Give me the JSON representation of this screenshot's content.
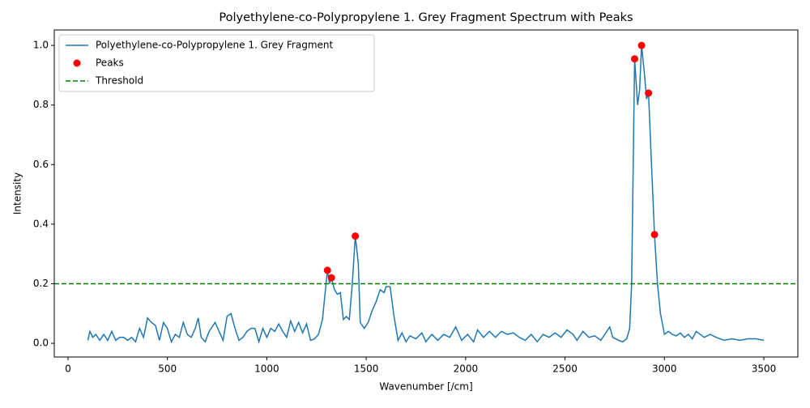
{
  "chart_data": {
    "type": "line",
    "title": "Polyethylene-co-Polypropylene 1. Grey Fragment Spectrum with Peaks",
    "x_label": "Wavenumber [/cm]",
    "y_label": "Intensity",
    "xlim": [
      -69,
      3671
    ],
    "ylim": [
      -0.046,
      1.052
    ],
    "xticks": [
      0,
      500,
      1000,
      1500,
      2000,
      2500,
      3000,
      3500
    ],
    "yticks": [
      {
        "value": 0,
        "label": "0.0"
      },
      0.2,
      0.4,
      0.6,
      0.8,
      {
        "value": 1,
        "label": "1.0"
      }
    ],
    "legend": "upper left",
    "series": [
      {
        "name": "Polyethylene-co-Polypropylene 1. Grey Fragment",
        "type": "line",
        "color": "#1f77b4",
        "x": [
          100,
          110,
          125,
          140,
          160,
          180,
          200,
          220,
          240,
          260,
          280,
          300,
          320,
          340,
          360,
          380,
          400,
          420,
          440,
          460,
          480,
          500,
          520,
          540,
          560,
          580,
          600,
          620,
          640,
          655,
          670,
          690,
          710,
          740,
          760,
          780,
          800,
          820,
          840,
          860,
          880,
          900,
          920,
          940,
          960,
          980,
          1000,
          1020,
          1040,
          1060,
          1080,
          1100,
          1120,
          1140,
          1160,
          1180,
          1200,
          1220,
          1240,
          1260,
          1280,
          1295,
          1305,
          1315,
          1325,
          1340,
          1355,
          1370,
          1385,
          1400,
          1415,
          1430,
          1445,
          1460,
          1470,
          1490,
          1510,
          1530,
          1550,
          1570,
          1590,
          1600,
          1620,
          1640,
          1660,
          1680,
          1700,
          1720,
          1750,
          1780,
          1800,
          1830,
          1860,
          1890,
          1920,
          1950,
          1980,
          2010,
          2040,
          2060,
          2090,
          2120,
          2150,
          2180,
          2210,
          2240,
          2270,
          2300,
          2330,
          2360,
          2390,
          2420,
          2450,
          2480,
          2510,
          2540,
          2560,
          2590,
          2620,
          2650,
          2680,
          2710,
          2725,
          2740,
          2770,
          2790,
          2810,
          2825,
          2835,
          2850,
          2865,
          2875,
          2885,
          2900,
          2910,
          2920,
          2935,
          2950,
          2965,
          2980,
          3000,
          3020,
          3040,
          3060,
          3080,
          3100,
          3120,
          3140,
          3160,
          3180,
          3200,
          3230,
          3260,
          3300,
          3340,
          3380,
          3420,
          3460,
          3500
        ],
        "values": [
          0.01,
          0.04,
          0.02,
          0.03,
          0.01,
          0.03,
          0.01,
          0.04,
          0.01,
          0.02,
          0.02,
          0.01,
          0.02,
          0.005,
          0.05,
          0.02,
          0.085,
          0.07,
          0.06,
          0.01,
          0.07,
          0.05,
          0.005,
          0.03,
          0.02,
          0.07,
          0.03,
          0.02,
          0.05,
          0.085,
          0.02,
          0.005,
          0.04,
          0.07,
          0.04,
          0.01,
          0.09,
          0.1,
          0.05,
          0.01,
          0.02,
          0.04,
          0.05,
          0.05,
          0.005,
          0.05,
          0.02,
          0.05,
          0.04,
          0.065,
          0.04,
          0.02,
          0.075,
          0.04,
          0.07,
          0.035,
          0.065,
          0.01,
          0.015,
          0.03,
          0.08,
          0.18,
          0.245,
          0.2,
          0.22,
          0.18,
          0.165,
          0.17,
          0.08,
          0.09,
          0.08,
          0.2,
          0.36,
          0.27,
          0.07,
          0.05,
          0.07,
          0.11,
          0.14,
          0.18,
          0.17,
          0.19,
          0.19,
          0.09,
          0.01,
          0.035,
          0.005,
          0.025,
          0.015,
          0.035,
          0.005,
          0.03,
          0.01,
          0.03,
          0.02,
          0.055,
          0.01,
          0.03,
          0.005,
          0.045,
          0.02,
          0.04,
          0.02,
          0.04,
          0.03,
          0.035,
          0.02,
          0.01,
          0.03,
          0.005,
          0.03,
          0.02,
          0.035,
          0.02,
          0.045,
          0.03,
          0.01,
          0.04,
          0.02,
          0.025,
          0.01,
          0.04,
          0.055,
          0.02,
          0.01,
          0.005,
          0.015,
          0.05,
          0.2,
          0.955,
          0.8,
          0.85,
          1.0,
          0.9,
          0.82,
          0.84,
          0.6,
          0.365,
          0.2,
          0.1,
          0.03,
          0.04,
          0.03,
          0.025,
          0.035,
          0.02,
          0.03,
          0.015,
          0.04,
          0.03,
          0.02,
          0.03,
          0.02,
          0.01,
          0.015,
          0.01,
          0.015,
          0.015,
          0.01
        ]
      },
      {
        "name": "Peaks",
        "type": "scatter",
        "color": "#ff0000",
        "x": [
          1305,
          1325,
          1445,
          2850,
          2885,
          2920,
          2950
        ],
        "values": [
          0.245,
          0.22,
          0.36,
          0.955,
          1.0,
          0.84,
          0.365
        ]
      },
      {
        "name": "Threshold",
        "type": "hline",
        "color": "#008000",
        "value": 0.2
      }
    ]
  }
}
